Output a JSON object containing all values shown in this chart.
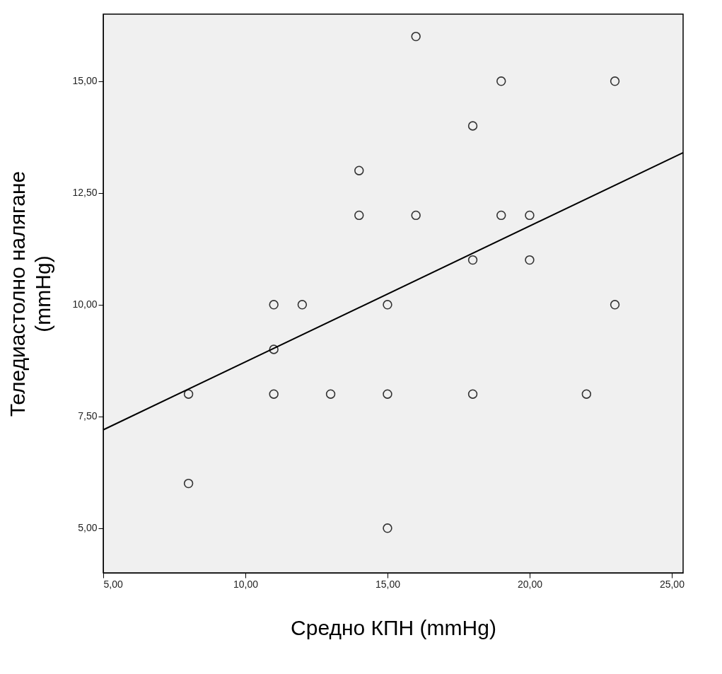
{
  "chart_data": {
    "type": "scatter",
    "xlabel": "Средно КПН (mmHg)",
    "ylabel": "Теледиастолно налягане (mmHg)",
    "grid": false,
    "xlim": [
      5,
      25.4
    ],
    "ylim": [
      4,
      16.5
    ],
    "xticks": [
      {
        "value": 5,
        "label": "5,00"
      },
      {
        "value": 10,
        "label": "10,00"
      },
      {
        "value": 15,
        "label": "15,00"
      },
      {
        "value": 20,
        "label": "20,00"
      },
      {
        "value": 25,
        "label": "25,00"
      }
    ],
    "yticks": [
      {
        "value": 5,
        "label": "5,00"
      },
      {
        "value": 7.5,
        "label": "7,50"
      },
      {
        "value": 10,
        "label": "10,00"
      },
      {
        "value": 12.5,
        "label": "12,50"
      },
      {
        "value": 15,
        "label": "15,00"
      }
    ],
    "series": [
      {
        "marker": "circle",
        "color": "#333333",
        "x": [
          16,
          19,
          23,
          18,
          14,
          14,
          16,
          19,
          20,
          18,
          20,
          11,
          12,
          15,
          23,
          11,
          8,
          11,
          13,
          15,
          18,
          22,
          8,
          15
        ],
        "values": [
          16,
          15,
          15,
          14,
          13,
          12,
          12,
          12,
          12,
          11,
          11,
          10,
          10,
          10,
          10,
          9,
          8,
          8,
          8,
          8,
          8,
          8,
          6,
          5
        ]
      },
      {
        "type": "line",
        "marker": "none",
        "color": "#000000",
        "x": [
          5,
          25.4
        ],
        "values": [
          7.2,
          13.4
        ]
      }
    ]
  }
}
